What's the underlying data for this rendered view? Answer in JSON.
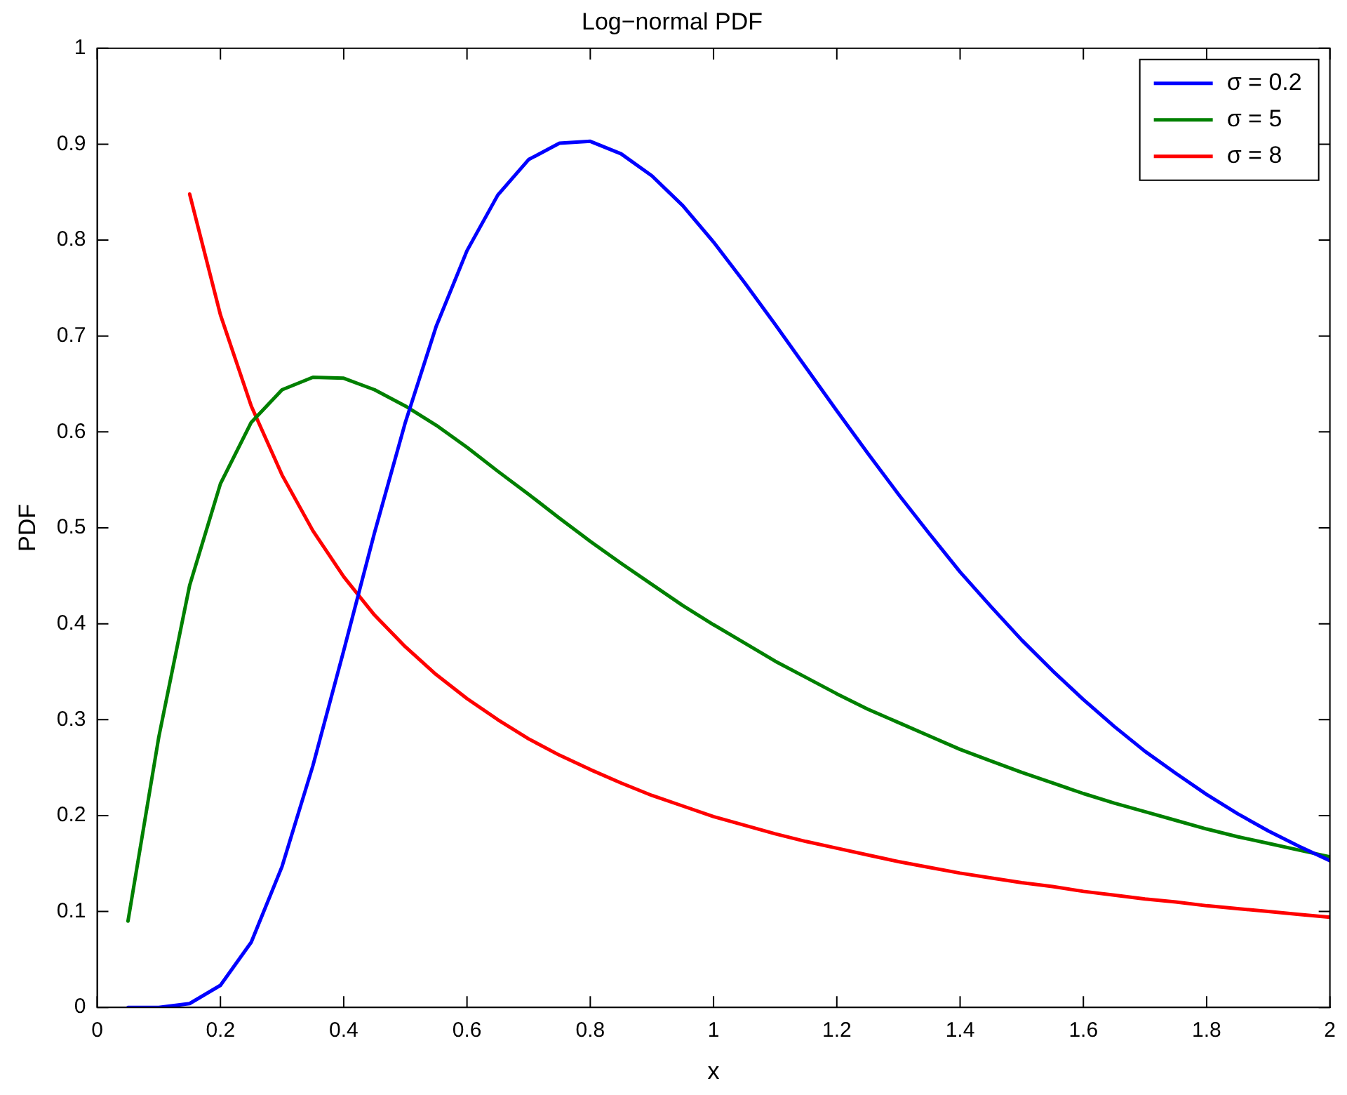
{
  "chart_data": {
    "type": "line",
    "title": "Log−normal PDF",
    "xlabel": "x",
    "ylabel": "PDF",
    "x": [
      0.05,
      0.1,
      0.15,
      0.2,
      0.25,
      0.3,
      0.35,
      0.4,
      0.45,
      0.5,
      0.55,
      0.6,
      0.65,
      0.7,
      0.75,
      0.8,
      0.85,
      0.9,
      0.95,
      1.0,
      1.05,
      1.1,
      1.15,
      1.2,
      1.25,
      1.3,
      1.35,
      1.4,
      1.45,
      1.5,
      1.55,
      1.6,
      1.65,
      1.7,
      1.75,
      1.8,
      1.85,
      1.9,
      1.95,
      2.0
    ],
    "series": [
      {
        "name": "σ = 0.2",
        "color": "#0000ff",
        "values": [
          0,
          0,
          0.004,
          0.023,
          0.068,
          0.147,
          0.252,
          0.372,
          0.495,
          0.61,
          0.71,
          0.789,
          0.847,
          0.884,
          0.901,
          0.903,
          0.89,
          0.867,
          0.836,
          0.798,
          0.756,
          0.712,
          0.667,
          0.622,
          0.578,
          0.535,
          0.494,
          0.454,
          0.418,
          0.383,
          0.351,
          0.321,
          0.293,
          0.267,
          0.244,
          0.222,
          0.202,
          0.184,
          0.168,
          0.153
        ]
      },
      {
        "name": "σ = 5",
        "color": "#008000",
        "values": [
          0.09,
          0.282,
          0.44,
          0.546,
          0.61,
          0.644,
          0.657,
          0.656,
          0.644,
          0.627,
          0.607,
          0.584,
          0.559,
          0.535,
          0.51,
          0.486,
          0.463,
          0.441,
          0.419,
          0.399,
          0.38,
          0.361,
          0.344,
          0.327,
          0.311,
          0.297,
          0.283,
          0.269,
          0.257,
          0.245,
          0.234,
          0.223,
          0.213,
          0.204,
          0.195,
          0.186,
          0.178,
          0.171,
          0.164,
          0.157
        ]
      },
      {
        "name": "σ = 8",
        "color": "#ff0000",
        "values": [
          null,
          null,
          0.848,
          0.722,
          0.627,
          0.555,
          0.497,
          0.449,
          0.409,
          0.376,
          0.347,
          0.322,
          0.3,
          0.28,
          0.263,
          0.248,
          0.234,
          0.221,
          0.21,
          0.199,
          0.19,
          0.181,
          0.173,
          0.166,
          0.159,
          0.152,
          0.146,
          0.14,
          0.135,
          0.13,
          0.126,
          0.121,
          0.117,
          0.113,
          0.11,
          0.106,
          0.103,
          0.1,
          0.097,
          0.094
        ]
      }
    ],
    "xlim": [
      0,
      2
    ],
    "xticks": [
      0,
      0.2,
      0.4,
      0.6,
      0.8,
      1,
      1.2,
      1.4,
      1.6,
      1.8,
      2
    ],
    "ylim": [
      0,
      1
    ],
    "yticks": [
      0,
      0.1,
      0.2,
      0.3,
      0.4,
      0.5,
      0.6,
      0.7,
      0.8,
      0.9,
      1
    ],
    "grid": false,
    "legend": "top right",
    "marker": "none",
    "line_style": "solid"
  }
}
